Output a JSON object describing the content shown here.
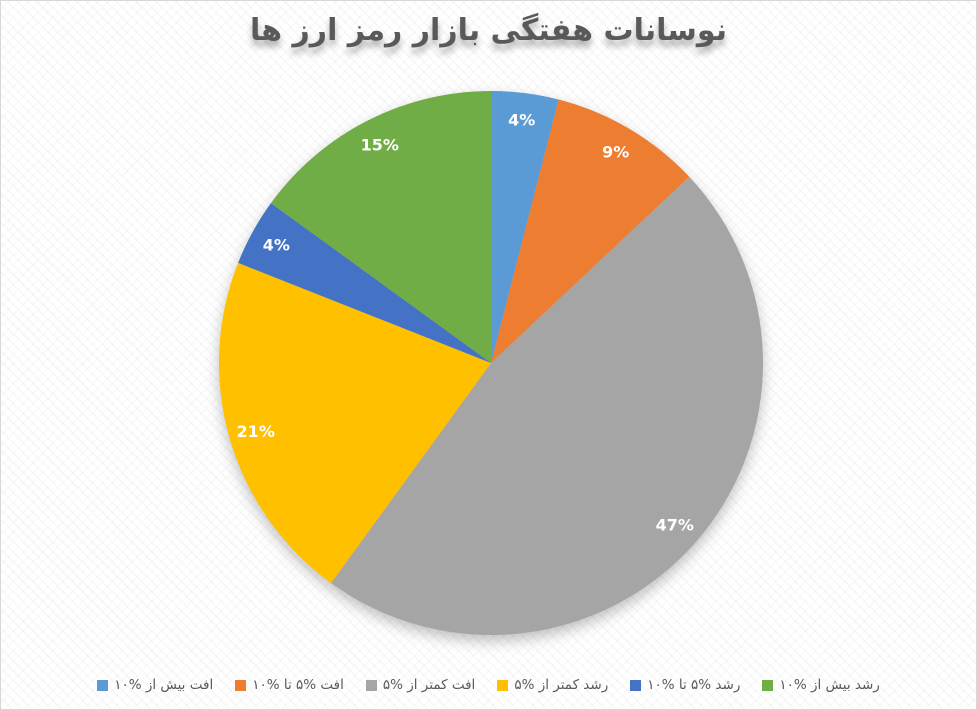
{
  "page": {
    "background_pattern": "diagonal-weave",
    "border_color": "#d7d7d7"
  },
  "chart_data": {
    "type": "pie",
    "title": "نوسانات هفتگی بازار رمز ارز ها",
    "title_color": "#595959",
    "direction": "clockwise",
    "start_angle_deg": 0,
    "legend_position": "bottom",
    "legend_text_color": "#595959",
    "data_label_color": "#ffffff",
    "total": 100,
    "slices": [
      {
        "id": "loss-over-10",
        "label": "افت بیش از %۱۰",
        "value": 4,
        "data_label": "4%",
        "color": "#5B9BD5"
      },
      {
        "id": "loss-5-10",
        "label": "افت %۵ تا %۱۰",
        "value": 9,
        "data_label": "9%",
        "color": "#ED7D31"
      },
      {
        "id": "loss-under-5",
        "label": "افت کمتر از %۵",
        "value": 47,
        "data_label": "47%",
        "color": "#A5A5A5"
      },
      {
        "id": "gain-under-5",
        "label": "رشد کمتر از %۵",
        "value": 21,
        "data_label": "21%",
        "color": "#FFC000"
      },
      {
        "id": "gain-5-10",
        "label": "رشد %۵ تا %۱۰",
        "value": 4,
        "data_label": "4%",
        "color": "#4472C4"
      },
      {
        "id": "gain-over-10",
        "label": "رشد بیش از %۱۰",
        "value": 15,
        "data_label": "15%",
        "color": "#70AD47"
      }
    ]
  }
}
